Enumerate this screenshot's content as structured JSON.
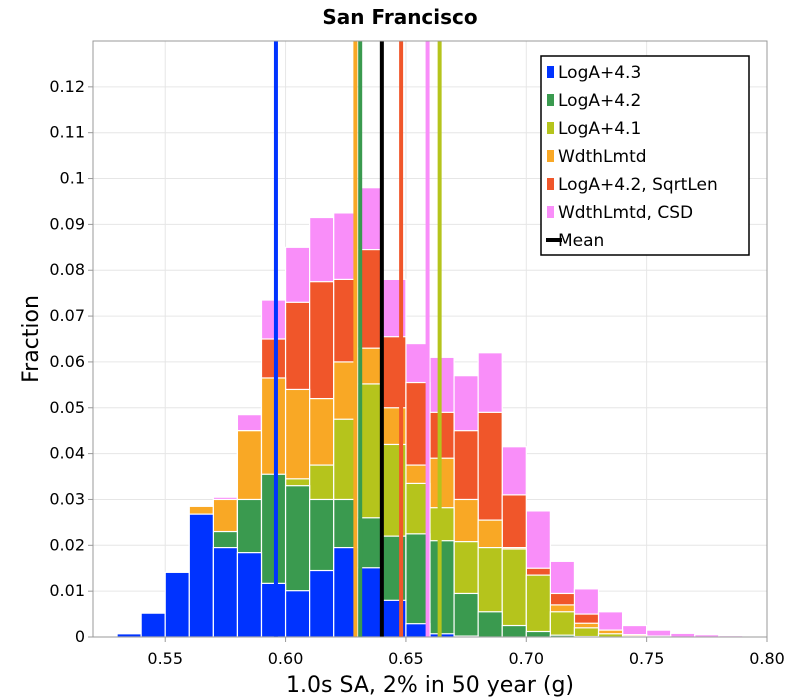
{
  "chart_data": {
    "type": "bar",
    "title": "San Francisco",
    "xlabel": "1.0s SA, 2% in 50 year (g)",
    "ylabel": "Fraction",
    "xlim": [
      0.52,
      0.8
    ],
    "ylim": [
      0,
      0.13
    ],
    "xticks": [
      "0.55",
      "0.60",
      "0.65",
      "0.70",
      "0.75",
      "0.80"
    ],
    "yticks": [
      "0",
      "0.01",
      "0.02",
      "0.03",
      "0.04",
      "0.05",
      "0.06",
      "0.07",
      "0.08",
      "0.09",
      "0.1",
      "0.11",
      "0.12"
    ],
    "grid": true,
    "legend_position": "top-right",
    "bin_width": 0.01,
    "bin_centers": [
      0.525,
      0.535,
      0.545,
      0.555,
      0.565,
      0.575,
      0.585,
      0.595,
      0.605,
      0.615,
      0.625,
      0.635,
      0.645,
      0.655,
      0.665,
      0.675,
      0.685,
      0.695,
      0.705,
      0.715,
      0.725,
      0.735,
      0.745,
      0.755,
      0.765,
      0.775,
      0.785,
      0.795
    ],
    "series": [
      {
        "name": "LogA+4.3",
        "color": "#0033ff",
        "values": [
          0.0002,
          0.0007,
          0.0052,
          0.0141,
          0.0268,
          0.0195,
          0.0184,
          0.0117,
          0.0101,
          0.0145,
          0.0195,
          0.0151,
          0.008,
          0.0029,
          0.0007,
          0.0002,
          0,
          0,
          0,
          0,
          0,
          0,
          0,
          0,
          0,
          0,
          0,
          0
        ],
        "mean": 0.596
      },
      {
        "name": "LogA+4.2",
        "color": "#3a9a4f",
        "values": [
          0.0001,
          0.0002,
          0.0007,
          0.003,
          0.023,
          0.023,
          0.03,
          0.0355,
          0.033,
          0.03,
          0.03,
          0.026,
          0.022,
          0.0225,
          0.021,
          0.0095,
          0.0055,
          0.0025,
          0.0012,
          0.0004,
          0.0001,
          0,
          0,
          0,
          0,
          0,
          0,
          0
        ],
        "mean": 0.631
      },
      {
        "name": "LogA+4.1",
        "color": "#b5c41c",
        "values": [
          0,
          0,
          0,
          0.0001,
          0.0003,
          0.001,
          0.0025,
          0.0085,
          0.0345,
          0.0375,
          0.0475,
          0.0552,
          0.042,
          0.0335,
          0.0282,
          0.0208,
          0.0195,
          0.0192,
          0.0135,
          0.0055,
          0.002,
          0.0007,
          0.0002,
          0,
          0,
          0,
          0,
          0
        ],
        "mean": 0.664
      },
      {
        "name": "WdthLmtd",
        "color": "#f9a825",
        "values": [
          0,
          0,
          0.0002,
          0.003,
          0.0285,
          0.03,
          0.045,
          0.0565,
          0.054,
          0.052,
          0.06,
          0.063,
          0.05,
          0.0375,
          0.039,
          0.03,
          0.0255,
          0.0195,
          0.0135,
          0.007,
          0.003,
          0.0015,
          0.0005,
          0.0002,
          0,
          0,
          0,
          0
        ],
        "mean": 0.629
      },
      {
        "name": "LogA+4.2, SqrtLen",
        "color": "#f0562a",
        "values": [
          0,
          0,
          0,
          0.0005,
          0.0015,
          0.004,
          0.045,
          0.065,
          0.073,
          0.0775,
          0.078,
          0.0845,
          0.0655,
          0.0555,
          0.049,
          0.045,
          0.049,
          0.031,
          0.015,
          0.0095,
          0.005,
          0.0015,
          0.0005,
          0,
          0,
          0,
          0,
          0
        ],
        "mean": 0.648
      },
      {
        "name": "WdthLmtd, CSD",
        "color": "#f98ef9",
        "values": [
          0,
          0,
          0.0001,
          0.0008,
          0.0037,
          0.0305,
          0.0485,
          0.0735,
          0.085,
          0.0915,
          0.0925,
          0.098,
          0.078,
          0.064,
          0.061,
          0.057,
          0.062,
          0.0415,
          0.0275,
          0.0165,
          0.0105,
          0.0055,
          0.0025,
          0.0015,
          0.0008,
          0.0005,
          0.0003,
          0.0001
        ],
        "mean": 0.659
      },
      {
        "name": "Mean",
        "color": "#000000",
        "values": [],
        "mean": 0.64
      }
    ]
  }
}
